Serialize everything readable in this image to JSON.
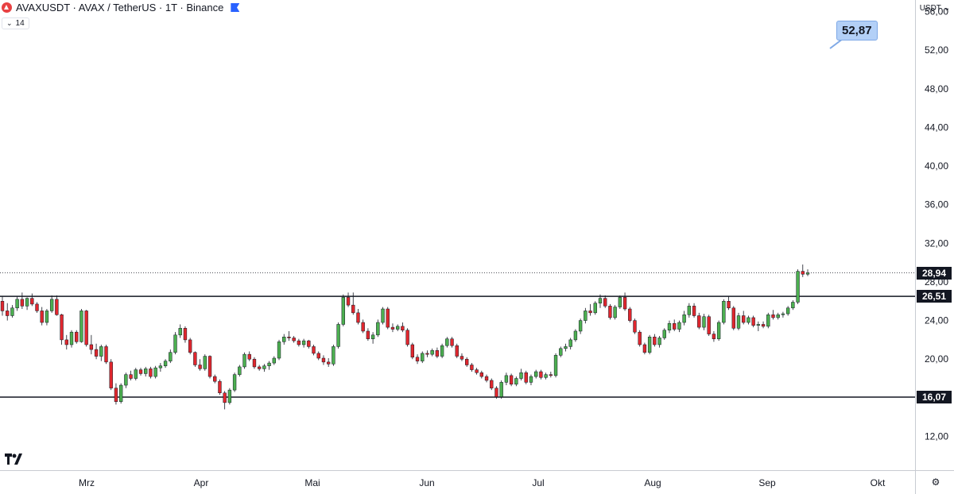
{
  "header": {
    "symbol_line": "AVAXUSDT · AVAX / TetherUS · 1T · Binance",
    "indicator_chevron": "⌄",
    "indicator_value": "14"
  },
  "price_axis": {
    "unit_label": "USDT",
    "unit_chevron": "⌄"
  },
  "callout_value": "52,87",
  "price_tags": {
    "current": "28,94",
    "resistance": "26,51",
    "support": "16,07"
  },
  "colors": {
    "up": "#4caf50",
    "down": "#e0272e",
    "line": "#131722",
    "axis_bg": "#ffffff"
  },
  "chart_data": {
    "type": "candlestick",
    "ylim": [
      8.5,
      57.2
    ],
    "yticks": [
      12,
      16,
      20,
      24,
      28,
      32,
      36,
      40,
      44,
      48,
      52,
      56
    ],
    "ytick_labels": [
      "12,00",
      "16,00",
      "20,00",
      "24,00",
      "28,00",
      "32,00",
      "36,00",
      "40,00",
      "44,00",
      "48,00",
      "52,00",
      "56,00"
    ],
    "x_labels": [
      "Mrz",
      "Apr",
      "Mai",
      "Jun",
      "Jul",
      "Aug",
      "Sep",
      "Okt"
    ],
    "horizontal_lines": [
      26.51,
      16.07
    ],
    "current_price": 28.94,
    "annotation": {
      "text": "52,87",
      "value": 52.87
    },
    "candles": [
      [
        26.0,
        26.5,
        24.5,
        25.0
      ],
      [
        25.0,
        25.8,
        24.0,
        24.5
      ],
      [
        24.5,
        25.6,
        24.3,
        25.3
      ],
      [
        25.3,
        26.5,
        25.0,
        26.2
      ],
      [
        26.2,
        26.9,
        25.2,
        25.5
      ],
      [
        25.5,
        26.4,
        25.1,
        26.3
      ],
      [
        26.3,
        26.8,
        25.5,
        25.7
      ],
      [
        25.7,
        25.9,
        24.8,
        25.0
      ],
      [
        25.0,
        25.4,
        23.5,
        23.8
      ],
      [
        23.8,
        25.2,
        23.5,
        25.0
      ],
      [
        25.0,
        26.6,
        24.8,
        26.2
      ],
      [
        26.2,
        26.6,
        24.5,
        24.6
      ],
      [
        24.6,
        24.7,
        21.5,
        22.0
      ],
      [
        22.0,
        22.5,
        21.0,
        21.5
      ],
      [
        21.5,
        23.0,
        21.2,
        22.8
      ],
      [
        22.8,
        23.0,
        21.6,
        21.8
      ],
      [
        21.8,
        25.2,
        21.7,
        25.0
      ],
      [
        25.0,
        25.1,
        21.3,
        21.5
      ],
      [
        21.5,
        22.5,
        20.5,
        21.0
      ],
      [
        21.0,
        21.6,
        20.0,
        20.3
      ],
      [
        20.3,
        21.5,
        19.8,
        21.3
      ],
      [
        21.3,
        21.5,
        19.5,
        19.7
      ],
      [
        19.7,
        20.0,
        16.8,
        17.0
      ],
      [
        17.0,
        17.5,
        15.3,
        15.6
      ],
      [
        15.6,
        17.5,
        15.4,
        17.3
      ],
      [
        17.3,
        18.6,
        17.0,
        18.4
      ],
      [
        18.4,
        18.8,
        17.8,
        18.0
      ],
      [
        18.0,
        19.1,
        17.8,
        18.9
      ],
      [
        18.9,
        19.1,
        18.3,
        18.5
      ],
      [
        18.5,
        19.2,
        18.2,
        19.0
      ],
      [
        19.0,
        19.2,
        18.0,
        18.2
      ],
      [
        18.2,
        19.3,
        18.0,
        19.1
      ],
      [
        19.1,
        19.6,
        18.7,
        19.3
      ],
      [
        19.3,
        20.0,
        19.1,
        19.8
      ],
      [
        19.8,
        21.0,
        19.6,
        20.7
      ],
      [
        20.7,
        22.8,
        20.5,
        22.5
      ],
      [
        22.5,
        23.6,
        22.2,
        23.2
      ],
      [
        23.2,
        23.4,
        21.7,
        22.0
      ],
      [
        22.0,
        22.2,
        20.5,
        20.7
      ],
      [
        20.7,
        20.8,
        19.2,
        19.4
      ],
      [
        19.4,
        20.0,
        18.8,
        19.0
      ],
      [
        19.0,
        20.5,
        18.8,
        20.3
      ],
      [
        20.3,
        20.4,
        18.0,
        18.2
      ],
      [
        18.2,
        18.4,
        17.5,
        17.7
      ],
      [
        17.7,
        17.9,
        16.3,
        16.5
      ],
      [
        16.5,
        16.7,
        14.8,
        15.5
      ],
      [
        15.5,
        17.0,
        15.3,
        16.8
      ],
      [
        16.8,
        18.6,
        16.6,
        18.4
      ],
      [
        18.4,
        19.4,
        18.2,
        19.2
      ],
      [
        19.2,
        20.7,
        19.0,
        20.5
      ],
      [
        20.5,
        20.8,
        19.8,
        20.0
      ],
      [
        20.0,
        20.2,
        19.0,
        19.2
      ],
      [
        19.2,
        19.4,
        18.8,
        19.0
      ],
      [
        19.0,
        19.5,
        18.7,
        19.3
      ],
      [
        19.3,
        19.8,
        18.9,
        19.6
      ],
      [
        19.6,
        20.3,
        19.4,
        20.1
      ],
      [
        20.1,
        22.0,
        19.9,
        21.8
      ],
      [
        21.8,
        22.6,
        21.5,
        22.3
      ],
      [
        22.3,
        22.9,
        21.9,
        22.2
      ],
      [
        22.2,
        22.4,
        21.7,
        21.9
      ],
      [
        21.9,
        22.1,
        21.3,
        21.5
      ],
      [
        21.5,
        22.1,
        21.2,
        21.9
      ],
      [
        21.9,
        22.0,
        21.1,
        21.3
      ],
      [
        21.3,
        21.5,
        20.4,
        20.6
      ],
      [
        20.6,
        20.8,
        19.9,
        20.1
      ],
      [
        20.1,
        20.4,
        19.4,
        19.7
      ],
      [
        19.7,
        20.1,
        19.2,
        19.5
      ],
      [
        19.5,
        21.5,
        19.3,
        21.3
      ],
      [
        21.3,
        23.8,
        21.1,
        23.6
      ],
      [
        23.6,
        26.7,
        23.4,
        26.4
      ],
      [
        26.4,
        26.9,
        25.4,
        25.6
      ],
      [
        25.6,
        26.9,
        24.6,
        24.8
      ],
      [
        24.8,
        25.2,
        23.6,
        23.8
      ],
      [
        23.8,
        24.1,
        22.7,
        22.9
      ],
      [
        22.9,
        23.2,
        21.9,
        22.1
      ],
      [
        22.1,
        22.8,
        21.6,
        22.5
      ],
      [
        22.5,
        24.1,
        22.3,
        23.8
      ],
      [
        23.8,
        25.4,
        23.6,
        25.2
      ],
      [
        25.2,
        25.4,
        23.1,
        23.3
      ],
      [
        23.3,
        23.7,
        22.8,
        23.1
      ],
      [
        23.1,
        23.6,
        22.9,
        23.4
      ],
      [
        23.4,
        23.8,
        22.8,
        23.0
      ],
      [
        23.0,
        23.2,
        21.3,
        21.5
      ],
      [
        21.5,
        21.7,
        20.0,
        20.2
      ],
      [
        20.2,
        20.5,
        19.5,
        19.8
      ],
      [
        19.8,
        20.8,
        19.6,
        20.6
      ],
      [
        20.6,
        20.9,
        20.2,
        20.5
      ],
      [
        20.5,
        21.1,
        20.3,
        20.9
      ],
      [
        20.9,
        21.2,
        20.1,
        20.3
      ],
      [
        20.3,
        21.6,
        20.1,
        21.4
      ],
      [
        21.4,
        22.3,
        21.2,
        22.1
      ],
      [
        22.1,
        22.3,
        21.2,
        21.4
      ],
      [
        21.4,
        21.6,
        20.1,
        20.3
      ],
      [
        20.3,
        20.6,
        19.8,
        20.0
      ],
      [
        20.0,
        20.2,
        19.2,
        19.4
      ],
      [
        19.4,
        19.6,
        18.7,
        18.9
      ],
      [
        18.9,
        19.1,
        18.4,
        18.6
      ],
      [
        18.6,
        18.8,
        18.0,
        18.2
      ],
      [
        18.2,
        18.4,
        17.6,
        17.8
      ],
      [
        17.8,
        18.0,
        16.8,
        17.0
      ],
      [
        17.0,
        17.2,
        15.9,
        16.1
      ],
      [
        16.1,
        17.8,
        15.9,
        17.6
      ],
      [
        17.6,
        18.6,
        17.3,
        18.3
      ],
      [
        18.3,
        18.5,
        17.2,
        17.4
      ],
      [
        17.4,
        18.2,
        17.2,
        18.0
      ],
      [
        18.0,
        19.0,
        17.8,
        18.6
      ],
      [
        18.6,
        18.8,
        17.4,
        17.6
      ],
      [
        17.6,
        18.4,
        17.3,
        18.2
      ],
      [
        18.2,
        18.9,
        18.0,
        18.7
      ],
      [
        18.7,
        18.9,
        17.9,
        18.1
      ],
      [
        18.1,
        18.6,
        17.9,
        18.4
      ],
      [
        18.4,
        18.7,
        18.1,
        18.3
      ],
      [
        18.3,
        20.6,
        18.1,
        20.4
      ],
      [
        20.4,
        21.3,
        20.2,
        21.1
      ],
      [
        21.1,
        21.6,
        20.8,
        21.3
      ],
      [
        21.3,
        22.2,
        21.0,
        22.0
      ],
      [
        22.0,
        23.1,
        21.8,
        22.9
      ],
      [
        22.9,
        24.2,
        22.6,
        24.0
      ],
      [
        24.0,
        25.3,
        23.7,
        25.0
      ],
      [
        25.0,
        25.7,
        24.5,
        24.8
      ],
      [
        24.8,
        26.0,
        24.6,
        25.8
      ],
      [
        25.8,
        26.7,
        25.3,
        26.3
      ],
      [
        26.3,
        26.6,
        25.3,
        25.5
      ],
      [
        25.5,
        25.7,
        24.1,
        24.3
      ],
      [
        24.3,
        25.6,
        24.1,
        25.4
      ],
      [
        25.4,
        26.6,
        25.2,
        26.4
      ],
      [
        26.4,
        26.9,
        25.0,
        25.2
      ],
      [
        25.2,
        25.4,
        23.8,
        24.0
      ],
      [
        24.0,
        24.2,
        22.6,
        22.8
      ],
      [
        22.8,
        23.0,
        21.3,
        21.5
      ],
      [
        21.5,
        21.7,
        20.5,
        20.7
      ],
      [
        20.7,
        22.5,
        20.5,
        22.3
      ],
      [
        22.3,
        22.6,
        21.3,
        21.5
      ],
      [
        21.5,
        22.4,
        21.2,
        22.2
      ],
      [
        22.2,
        23.2,
        22.0,
        23.0
      ],
      [
        23.0,
        24.0,
        22.7,
        23.7
      ],
      [
        23.7,
        24.1,
        22.9,
        23.1
      ],
      [
        23.1,
        24.0,
        22.8,
        23.8
      ],
      [
        23.8,
        25.0,
        23.5,
        24.6
      ],
      [
        24.6,
        25.8,
        24.3,
        25.5
      ],
      [
        25.5,
        25.8,
        24.3,
        24.5
      ],
      [
        24.5,
        24.8,
        23.1,
        23.3
      ],
      [
        23.3,
        24.7,
        23.0,
        24.4
      ],
      [
        24.4,
        24.6,
        22.4,
        22.6
      ],
      [
        22.6,
        22.9,
        21.8,
        22.1
      ],
      [
        22.1,
        24.0,
        21.9,
        23.8
      ],
      [
        23.8,
        26.2,
        23.6,
        26.0
      ],
      [
        26.0,
        26.5,
        25.1,
        25.3
      ],
      [
        25.3,
        25.5,
        23.0,
        23.2
      ],
      [
        23.2,
        24.8,
        23.0,
        24.5
      ],
      [
        24.5,
        25.0,
        23.6,
        23.8
      ],
      [
        23.8,
        24.5,
        23.6,
        24.3
      ],
      [
        24.3,
        24.5,
        23.3,
        23.5
      ],
      [
        23.5,
        23.9,
        22.9,
        23.6
      ],
      [
        23.6,
        23.9,
        23.2,
        23.4
      ],
      [
        23.4,
        24.8,
        23.2,
        24.6
      ],
      [
        24.6,
        25.1,
        24.1,
        24.3
      ],
      [
        24.3,
        24.8,
        24.1,
        24.6
      ],
      [
        24.6,
        24.9,
        24.3,
        24.7
      ],
      [
        24.7,
        25.5,
        24.5,
        25.3
      ],
      [
        25.3,
        26.1,
        25.1,
        25.9
      ],
      [
        25.9,
        29.3,
        25.7,
        29.1
      ],
      [
        29.1,
        29.8,
        28.5,
        28.8
      ],
      [
        28.8,
        29.3,
        28.6,
        28.94
      ]
    ]
  }
}
